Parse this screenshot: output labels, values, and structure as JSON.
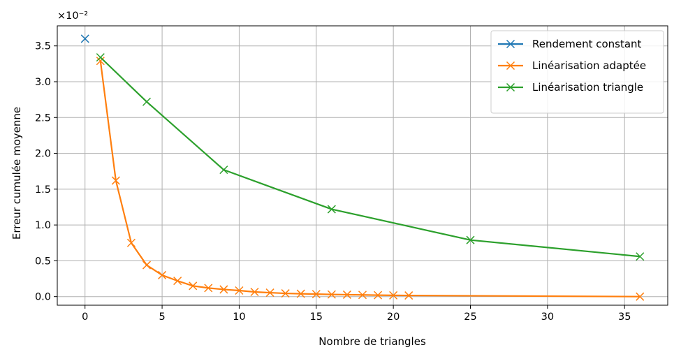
{
  "chart_data": {
    "type": "line",
    "xlabel": "Nombre de triangles",
    "ylabel": "Erreur cumulée moyenne",
    "y_scale_label": "×10⁻²",
    "xlim": [
      -1.8,
      37.8
    ],
    "ylim": [
      -0.12,
      3.78
    ],
    "xticks": [
      0,
      5,
      10,
      15,
      20,
      25,
      30,
      35
    ],
    "yticks": [
      0.0,
      0.5,
      1.0,
      1.5,
      2.0,
      2.5,
      3.0,
      3.5
    ],
    "ytick_labels": [
      "0.0",
      "0.5",
      "1.0",
      "1.5",
      "2.0",
      "2.5",
      "3.0",
      "3.5"
    ],
    "grid": true,
    "legend_position": "top-right",
    "marker": "x",
    "series": [
      {
        "name": "Rendement constant",
        "color": "#1f77b4",
        "x": [
          0
        ],
        "y": [
          3.6
        ]
      },
      {
        "name": "Linéarisation adaptée",
        "color": "#ff7f0e",
        "x": [
          1,
          2,
          3,
          4,
          5,
          6,
          7,
          8,
          9,
          10,
          11,
          12,
          13,
          14,
          15,
          16,
          17,
          18,
          19,
          20,
          21,
          36
        ],
        "y": [
          3.29,
          1.62,
          0.75,
          0.44,
          0.3,
          0.22,
          0.15,
          0.12,
          0.1,
          0.085,
          0.065,
          0.055,
          0.045,
          0.04,
          0.035,
          0.03,
          0.027,
          0.024,
          0.02,
          0.018,
          0.016,
          0.0
        ]
      },
      {
        "name": "Linéarisation triangle",
        "color": "#2ca02c",
        "x": [
          1,
          4,
          9,
          16,
          25,
          36
        ],
        "y": [
          3.34,
          2.72,
          1.77,
          1.22,
          0.79,
          0.56
        ]
      }
    ]
  }
}
